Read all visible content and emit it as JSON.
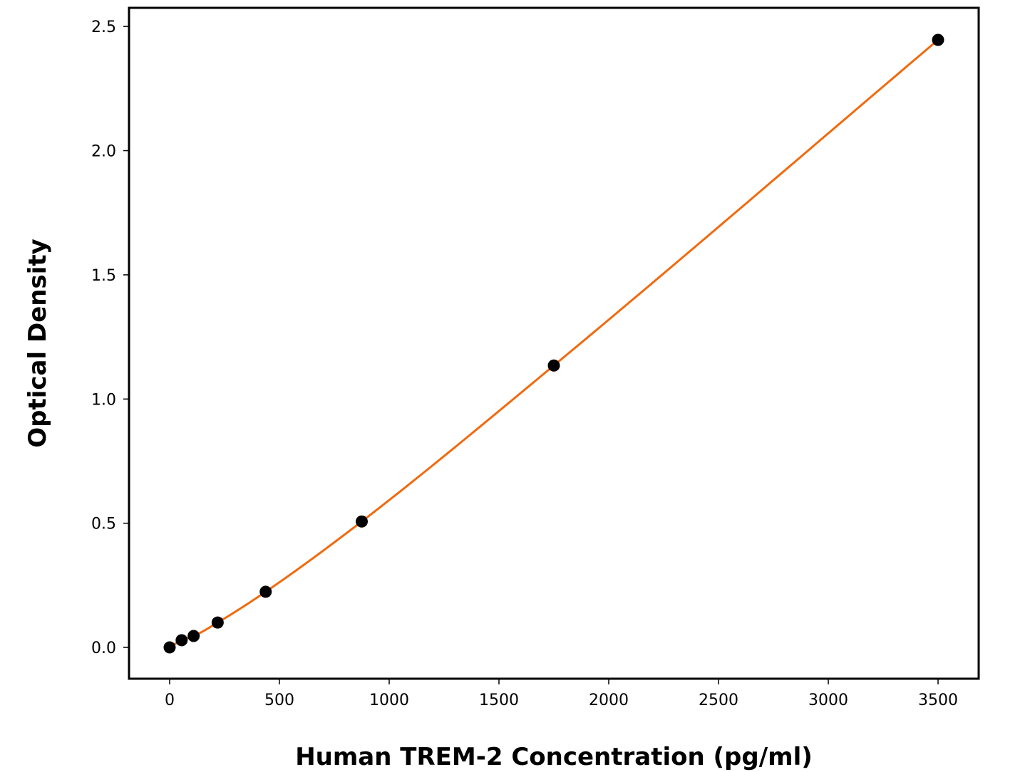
{
  "chart_data": {
    "type": "scatter",
    "title": "",
    "xlabel": "Human TREM-2 Concentration (pg/ml)",
    "ylabel": "Optical Density",
    "xlim": [
      -185,
      3685
    ],
    "ylim": [
      -0.126,
      2.575
    ],
    "xticks": [
      0,
      500,
      1000,
      1500,
      2000,
      2500,
      3000,
      3500
    ],
    "xtick_labels": [
      "0",
      "500",
      "1000",
      "1500",
      "2000",
      "2500",
      "3000",
      "3500"
    ],
    "yticks": [
      0.0,
      0.5,
      1.0,
      1.5,
      2.0,
      2.5
    ],
    "ytick_labels": [
      "0.0",
      "0.5",
      "1.0",
      "1.5",
      "2.0",
      "2.5"
    ],
    "grid": false,
    "series": [
      {
        "x": [
          0,
          54.69,
          109.38,
          218.75,
          437.5,
          875,
          1750,
          3500
        ],
        "y": [
          0.0,
          0.029,
          0.046,
          0.1,
          0.224,
          0.507,
          1.135,
          2.446
        ],
        "marker_color": "#000000",
        "fit_line_color": "#f06a0f"
      }
    ]
  }
}
